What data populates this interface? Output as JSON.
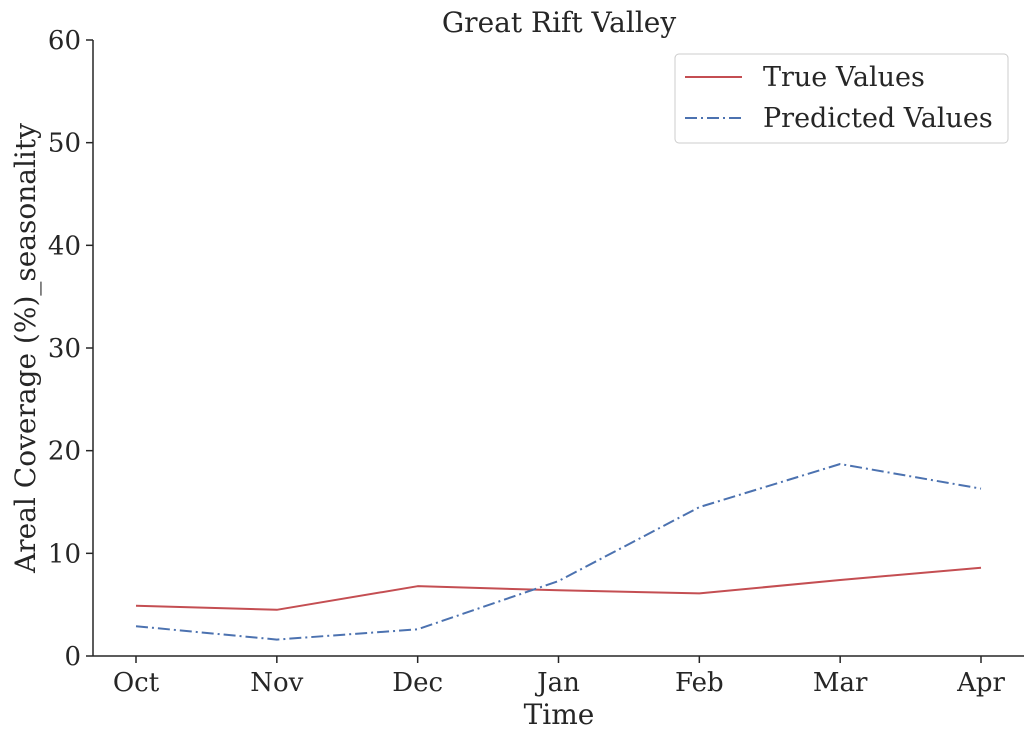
{
  "chart_data": {
    "type": "line",
    "title": "Great Rift Valley",
    "xlabel": "Time",
    "ylabel": "Areal Coverage (%)_seasonality",
    "categories": [
      "Oct",
      "Nov",
      "Dec",
      "Jan",
      "Feb",
      "Mar",
      "Apr"
    ],
    "ylim": [
      0,
      60
    ],
    "yticks": [
      0,
      10,
      20,
      30,
      40,
      50,
      60
    ],
    "grid": false,
    "legend_position": "top-right",
    "series": [
      {
        "name": "True Values",
        "color": "#c44e52",
        "style": "solid",
        "values": [
          4.9,
          4.5,
          6.8,
          6.4,
          6.1,
          7.4,
          8.6
        ]
      },
      {
        "name": "Predicted Values",
        "color": "#4c72b0",
        "style": "dashdot",
        "values": [
          2.9,
          1.6,
          2.6,
          7.3,
          14.5,
          18.7,
          16.3
        ]
      }
    ]
  }
}
